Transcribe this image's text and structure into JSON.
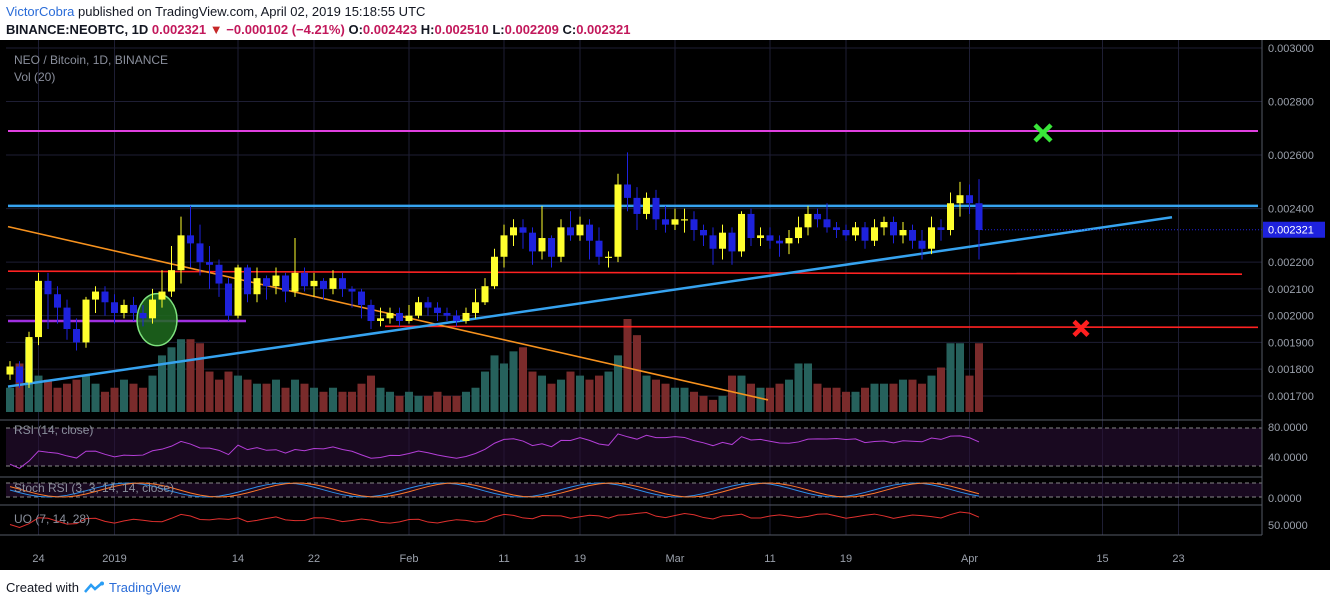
{
  "header": {
    "author": "VictorCobra",
    "published": "published on TradingView.com, April 02, 2019 15:18:55 UTC",
    "symbol": "BINANCE:NEOBTC, 1D",
    "last": "0.002321",
    "change": "−0.000102 (−4.21%)",
    "o_label": "O:",
    "o_val": "0.002423",
    "h_label": "H:",
    "h_val": "0.002510",
    "l_label": "L:",
    "l_val": "0.002209",
    "c_label": "C:",
    "c_val": "0.002321"
  },
  "legend": {
    "main": "NEO / Bitcoin, 1D, BINANCE",
    "vol": "Vol (20)",
    "rsi": "RSI (14, close)",
    "stoch": "Stoch RSI (3, 3, 14, 14, close)",
    "uo": "UO (7, 14, 28)"
  },
  "footer": {
    "created": "Created with",
    "brand": "TradingView"
  },
  "colors": {
    "bg": "#000000",
    "up": "#ffff2e",
    "down": "#1e22dd",
    "volUp": "#26615c",
    "volDown": "#7a2b2b",
    "support": "#ff2222",
    "resistance": "#36a3f0",
    "top": "#e040e0",
    "trend": "#f7921e",
    "rsi": "#b43ed8",
    "k": "#2d8fe8",
    "d": "#ff7a2a",
    "uo": "#e0302e"
  },
  "chart_data": {
    "type": "candlestick",
    "price_axis": {
      "ylim": [
        0.00164,
        0.003
      ],
      "ticks": [
        "0.003000",
        "0.002800",
        "0.002600",
        "0.002400",
        "0.002200",
        "0.002100",
        "0.002000",
        "0.001900",
        "0.001800",
        "0.001700"
      ],
      "last_label": "0.002321"
    },
    "x_ticks": [
      {
        "label": "24",
        "i": 3
      },
      {
        "label": "2019",
        "i": 11
      },
      {
        "label": "14",
        "i": 24
      },
      {
        "label": "22",
        "i": 32
      },
      {
        "label": "Feb",
        "i": 42
      },
      {
        "label": "11",
        "i": 52
      },
      {
        "label": "19",
        "i": 60
      },
      {
        "label": "Mar",
        "i": 70
      },
      {
        "label": "11",
        "i": 80
      },
      {
        "label": "19",
        "i": 88
      },
      {
        "label": "Apr",
        "i": 101
      },
      {
        "label": "15",
        "i": 115
      },
      {
        "label": "23",
        "i": 123
      }
    ],
    "candles": [
      [
        0.00178,
        0.00181,
        0.00176,
        0.00183
      ],
      [
        0.00181,
        0.00175,
        0.00173,
        0.00183
      ],
      [
        0.00175,
        0.00192,
        0.00173,
        0.00194
      ],
      [
        0.00192,
        0.00213,
        0.00189,
        0.00216
      ],
      [
        0.00213,
        0.00208,
        0.00195,
        0.00216
      ],
      [
        0.00208,
        0.00203,
        0.00197,
        0.00211
      ],
      [
        0.00203,
        0.00195,
        0.00191,
        0.00206
      ],
      [
        0.00195,
        0.0019,
        0.00187,
        0.00199
      ],
      [
        0.0019,
        0.00206,
        0.00188,
        0.00207
      ],
      [
        0.00206,
        0.00209,
        0.00201,
        0.00211
      ],
      [
        0.00209,
        0.00205,
        0.002,
        0.00211
      ],
      [
        0.00205,
        0.00201,
        0.00197,
        0.00208
      ],
      [
        0.00201,
        0.00204,
        0.00199,
        0.00206
      ],
      [
        0.00204,
        0.00201,
        0.00198,
        0.00207
      ],
      [
        0.00201,
        0.00199,
        0.00196,
        0.00204
      ],
      [
        0.00199,
        0.00206,
        0.00197,
        0.0021
      ],
      [
        0.00206,
        0.00209,
        0.00203,
        0.00217
      ],
      [
        0.00209,
        0.00217,
        0.00207,
        0.00226
      ],
      [
        0.00217,
        0.0023,
        0.00212,
        0.00237
      ],
      [
        0.0023,
        0.00227,
        0.00218,
        0.00241
      ],
      [
        0.00227,
        0.0022,
        0.00215,
        0.00234
      ],
      [
        0.0022,
        0.00219,
        0.0021,
        0.00226
      ],
      [
        0.00219,
        0.00212,
        0.00207,
        0.00221
      ],
      [
        0.00212,
        0.002,
        0.00198,
        0.00214
      ],
      [
        0.002,
        0.00218,
        0.00199,
        0.00219
      ],
      [
        0.00218,
        0.00208,
        0.00205,
        0.00219
      ],
      [
        0.00208,
        0.00214,
        0.00205,
        0.00218
      ],
      [
        0.00214,
        0.00211,
        0.00206,
        0.00215
      ],
      [
        0.00211,
        0.00215,
        0.00208,
        0.00218
      ],
      [
        0.00215,
        0.00209,
        0.00205,
        0.00216
      ],
      [
        0.00209,
        0.00216,
        0.00207,
        0.00229
      ],
      [
        0.00216,
        0.00211,
        0.00209,
        0.00218
      ],
      [
        0.00211,
        0.00213,
        0.00207,
        0.00216
      ],
      [
        0.00213,
        0.0021,
        0.00206,
        0.00214
      ],
      [
        0.0021,
        0.00214,
        0.00208,
        0.00217
      ],
      [
        0.00214,
        0.0021,
        0.00207,
        0.00216
      ],
      [
        0.0021,
        0.00209,
        0.00203,
        0.00211
      ],
      [
        0.00209,
        0.00204,
        0.00199,
        0.0021
      ],
      [
        0.00204,
        0.00198,
        0.00195,
        0.00206
      ],
      [
        0.00198,
        0.00199,
        0.00196,
        0.00203
      ],
      [
        0.00199,
        0.00201,
        0.00197,
        0.00203
      ],
      [
        0.00201,
        0.00198,
        0.00196,
        0.00203
      ],
      [
        0.00198,
        0.002,
        0.00197,
        0.00204
      ],
      [
        0.002,
        0.00205,
        0.00199,
        0.00207
      ],
      [
        0.00205,
        0.00203,
        0.002,
        0.00207
      ],
      [
        0.00203,
        0.00201,
        0.00198,
        0.00205
      ],
      [
        0.00201,
        0.002,
        0.00198,
        0.00203
      ],
      [
        0.002,
        0.00198,
        0.00196,
        0.00202
      ],
      [
        0.00198,
        0.00201,
        0.00197,
        0.00203
      ],
      [
        0.00201,
        0.00205,
        0.00199,
        0.0021
      ],
      [
        0.00205,
        0.00211,
        0.00204,
        0.00214
      ],
      [
        0.00211,
        0.00222,
        0.0021,
        0.00225
      ],
      [
        0.00222,
        0.0023,
        0.00218,
        0.00234
      ],
      [
        0.0023,
        0.00233,
        0.00226,
        0.00236
      ],
      [
        0.00233,
        0.00231,
        0.00225,
        0.00236
      ],
      [
        0.00231,
        0.00224,
        0.00219,
        0.00233
      ],
      [
        0.00224,
        0.00229,
        0.00221,
        0.00241
      ],
      [
        0.00229,
        0.00222,
        0.00218,
        0.0023
      ],
      [
        0.00222,
        0.00233,
        0.0022,
        0.00236
      ],
      [
        0.00233,
        0.0023,
        0.00228,
        0.00239
      ],
      [
        0.0023,
        0.00234,
        0.00228,
        0.00237
      ],
      [
        0.00234,
        0.00228,
        0.00221,
        0.00236
      ],
      [
        0.00228,
        0.00222,
        0.00219,
        0.00233
      ],
      [
        0.00222,
        0.00222,
        0.00218,
        0.00224
      ],
      [
        0.00222,
        0.00249,
        0.0022,
        0.00253
      ],
      [
        0.00249,
        0.00244,
        0.00239,
        0.00261
      ],
      [
        0.00244,
        0.00238,
        0.00232,
        0.00248
      ],
      [
        0.00238,
        0.00244,
        0.00236,
        0.00246
      ],
      [
        0.00244,
        0.00236,
        0.00232,
        0.00247
      ],
      [
        0.00236,
        0.00234,
        0.00231,
        0.00241
      ],
      [
        0.00234,
        0.00236,
        0.00232,
        0.0024
      ],
      [
        0.00236,
        0.00236,
        0.00231,
        0.0024
      ],
      [
        0.00236,
        0.00232,
        0.00228,
        0.00239
      ],
      [
        0.00232,
        0.0023,
        0.00226,
        0.00234
      ],
      [
        0.0023,
        0.00225,
        0.00219,
        0.00233
      ],
      [
        0.00225,
        0.00231,
        0.00221,
        0.00234
      ],
      [
        0.00231,
        0.00224,
        0.00219,
        0.00233
      ],
      [
        0.00224,
        0.00238,
        0.00222,
        0.00239
      ],
      [
        0.00238,
        0.00229,
        0.00226,
        0.0024
      ],
      [
        0.00229,
        0.0023,
        0.00226,
        0.00233
      ],
      [
        0.0023,
        0.00228,
        0.00225,
        0.00233
      ],
      [
        0.00228,
        0.00227,
        0.00222,
        0.0023
      ],
      [
        0.00227,
        0.00229,
        0.00223,
        0.00232
      ],
      [
        0.00229,
        0.00233,
        0.00227,
        0.00237
      ],
      [
        0.00233,
        0.00238,
        0.0023,
        0.00241
      ],
      [
        0.00238,
        0.00236,
        0.00233,
        0.0024
      ],
      [
        0.00236,
        0.00233,
        0.00231,
        0.00242
      ],
      [
        0.00233,
        0.00232,
        0.00229,
        0.00235
      ],
      [
        0.00232,
        0.0023,
        0.00228,
        0.00234
      ],
      [
        0.0023,
        0.00233,
        0.00228,
        0.00235
      ],
      [
        0.00233,
        0.00228,
        0.00225,
        0.00235
      ],
      [
        0.00228,
        0.00233,
        0.00226,
        0.00236
      ],
      [
        0.00233,
        0.00235,
        0.0023,
        0.00237
      ],
      [
        0.00235,
        0.0023,
        0.00227,
        0.00237
      ],
      [
        0.0023,
        0.00232,
        0.00227,
        0.00235
      ],
      [
        0.00232,
        0.00228,
        0.00225,
        0.00234
      ],
      [
        0.00228,
        0.00225,
        0.00221,
        0.00232
      ],
      [
        0.00225,
        0.00233,
        0.00223,
        0.00237
      ],
      [
        0.00233,
        0.00232,
        0.00228,
        0.00236
      ],
      [
        0.00232,
        0.00242,
        0.0023,
        0.00246
      ],
      [
        0.00242,
        0.00245,
        0.00237,
        0.0025
      ],
      [
        0.00245,
        0.00242,
        0.00238,
        0.00249
      ],
      [
        0.00242,
        0.00232,
        0.00221,
        0.00251
      ]
    ],
    "volume": [
      6,
      12,
      18,
      9,
      8,
      6,
      7,
      8,
      9,
      7,
      5,
      6,
      8,
      7,
      6,
      9,
      14,
      16,
      18,
      18,
      17,
      10,
      8,
      10,
      9,
      8,
      7,
      7,
      8,
      6,
      8,
      7,
      6,
      5,
      6,
      5,
      5,
      7,
      9,
      6,
      5,
      4,
      5,
      4,
      4,
      5,
      4,
      4,
      5,
      6,
      10,
      14,
      12,
      15,
      16,
      10,
      9,
      7,
      8,
      10,
      9,
      8,
      9,
      10,
      14,
      23,
      19,
      9,
      8,
      7,
      6,
      6,
      5,
      4,
      3,
      4,
      9,
      9,
      7,
      6,
      6,
      7,
      8,
      12,
      12,
      7,
      6,
      6,
      5,
      5,
      6,
      7,
      7,
      7,
      8,
      8,
      7,
      9,
      11,
      17,
      17,
      9,
      17
    ],
    "rsi_ticks": [
      "80.0000",
      "40.0000"
    ],
    "stoch_ticks": [
      "0.0000"
    ],
    "uo_ticks": [
      "50.0000"
    ],
    "levels": {
      "top": 0.00269,
      "resistance": 0.00241,
      "support1": 0.002155,
      "support2": 0.00196,
      "small_support": 0.00198
    }
  }
}
